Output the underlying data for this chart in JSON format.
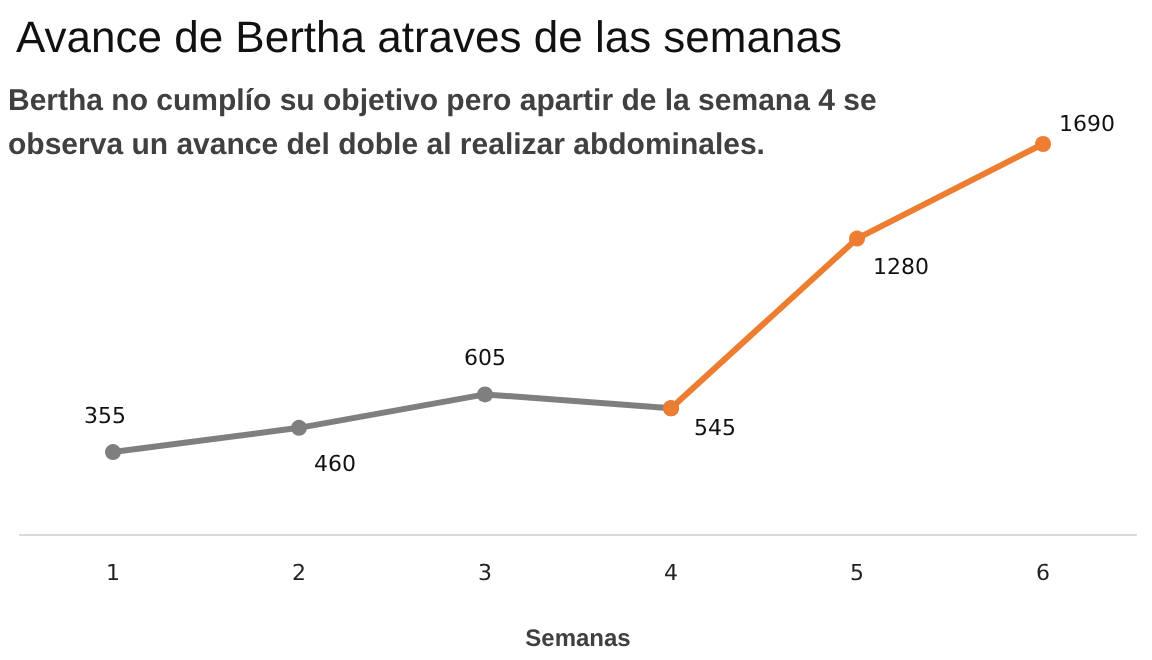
{
  "chart_data": {
    "type": "line",
    "title": "Avance de Bertha atraves de las semanas",
    "subtitle": "Bertha no cumplío su objetivo pero apartir de la semana 4 se observa un avance del doble al realizar abdominales.",
    "xlabel": "Semanas",
    "categories": [
      "1",
      "2",
      "3",
      "4",
      "5",
      "6"
    ],
    "series": [
      {
        "color": "#7f7f7f",
        "values": [
          355,
          460,
          605,
          545,
          null,
          null
        ],
        "value_labels": [
          "355",
          "460",
          "605",
          null,
          null,
          null
        ]
      },
      {
        "color": "#ed7d31",
        "values": [
          null,
          null,
          null,
          545,
          1280,
          1690
        ],
        "value_labels": [
          null,
          null,
          null,
          "545",
          "1280",
          "1690"
        ]
      }
    ],
    "marker": "circle",
    "line_style": "solid"
  }
}
